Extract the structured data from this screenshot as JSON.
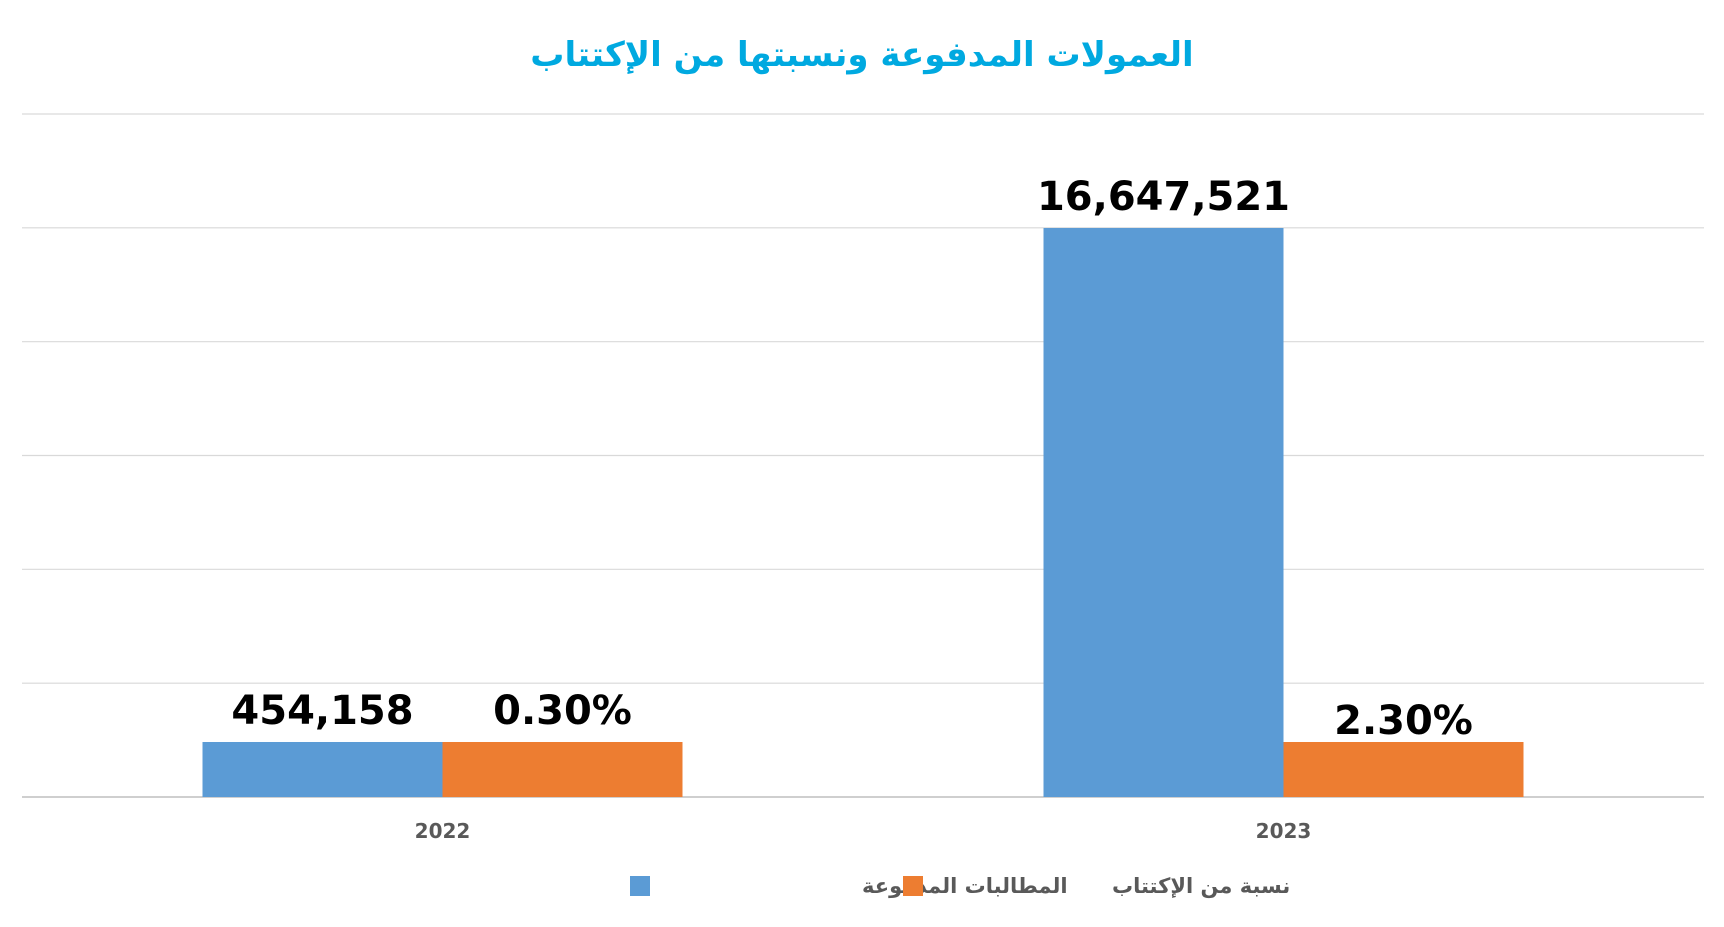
{
  "chart_data": {
    "type": "bar",
    "title": "العمولات المدفوعة ونسبتها من الإكتتاب",
    "categories": [
      "2022",
      "2023"
    ],
    "series": [
      {
        "name": "المطالبات المدفوعة",
        "values": [
          454158,
          16647521
        ],
        "labels": [
          "454,158",
          "16,647,521"
        ],
        "color": "#5B9BD5"
      },
      {
        "name": "نسبة من الإكتتاب",
        "values": [
          0.3,
          2.3
        ],
        "labels": [
          "0.30%",
          "2.30%"
        ],
        "color": "#ED7D31"
      }
    ],
    "legend_position": "bottom",
    "grid": true,
    "title_color": "#00A9E0"
  }
}
